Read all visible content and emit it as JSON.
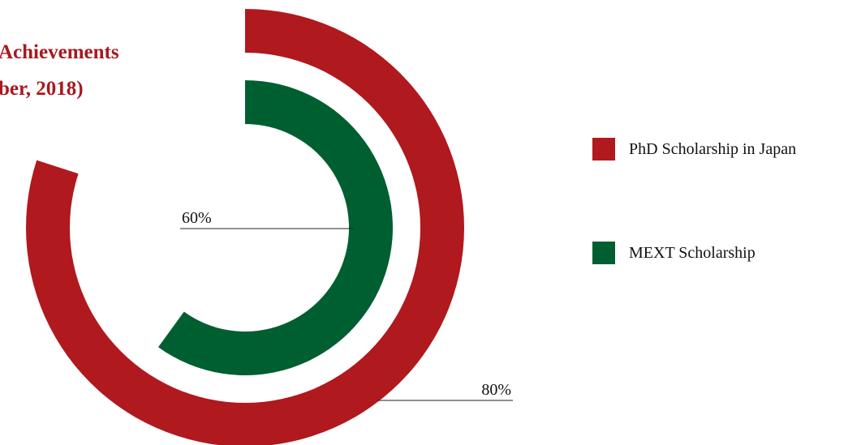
{
  "chart_data": {
    "type": "radial-bar",
    "title": [
      "Achievements",
      "ber, 2018)"
    ],
    "series": [
      {
        "name": "PhD Scholarship in Japan",
        "color": "#b0191e",
        "values": [
          80
        ],
        "value_labels": [
          "80%"
        ]
      },
      {
        "name": "MEXT Scholarship",
        "color": "#005f30",
        "values": [
          60
        ],
        "value_labels": [
          "60%"
        ]
      }
    ],
    "ylim": [
      0,
      100
    ]
  }
}
